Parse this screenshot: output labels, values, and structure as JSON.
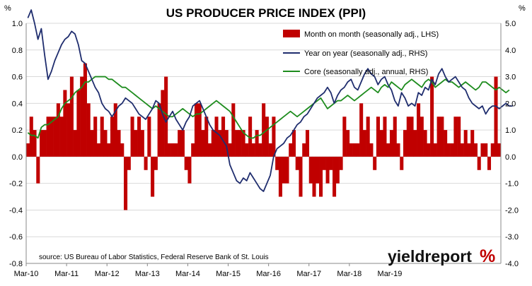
{
  "chart_data": {
    "type": "bar+line",
    "title": "US PRODUCER PRICE INDEX (PPI)",
    "left_unit": "%",
    "right_unit": "%",
    "source": "source: US Bureau of Labor Statistics, Federal Reserve Bank of St. Louis",
    "branding": {
      "word": "yieldreport",
      "symbol": "%"
    },
    "colors": {
      "bars": "#c00000",
      "yoy": "#1f2d6e",
      "core": "#1e8c1e",
      "grid": "#d9d9d9",
      "brand_accent": "#c00000"
    },
    "grid": true,
    "legend_position": "top-right",
    "left_axis": {
      "range": [
        -0.8,
        1.0
      ],
      "ticks": [
        "1.0",
        "0.8",
        "0.6",
        "0.4",
        "0.2",
        "0.0",
        "-0.2",
        "-0.4",
        "-0.6",
        "-0.8"
      ]
    },
    "right_axis": {
      "range": [
        -4.0,
        5.0
      ],
      "ticks": [
        "5.0",
        "4.0",
        "3.0",
        "2.0",
        "1.0",
        "0.0",
        "-1.0",
        "-2.0",
        "-3.0",
        "-4.0"
      ]
    },
    "x_ticks": [
      "Mar-10",
      "Mar-11",
      "Mar-12",
      "Mar-13",
      "Mar-14",
      "Mar-15",
      "Mar-16",
      "Mar-17",
      "Mar-18",
      "Mar-19"
    ],
    "x_tick_month_index": [
      0,
      12,
      24,
      36,
      48,
      60,
      72,
      84,
      96,
      108
    ],
    "series": [
      {
        "name": "Month on month (seasonally adj., LHS)",
        "kind": "bar",
        "axis": "left",
        "values": [
          0.1,
          0.3,
          0.2,
          -0.2,
          0.2,
          0.2,
          0.3,
          0.3,
          0.3,
          0.4,
          0.3,
          0.5,
          0.4,
          0.6,
          0.2,
          0.5,
          0.6,
          0.7,
          0.4,
          0.2,
          0.3,
          0.1,
          0.3,
          0.2,
          0.1,
          0.3,
          0.4,
          0.2,
          0.1,
          -0.4,
          -0.1,
          0.3,
          0.2,
          0.3,
          0.2,
          -0.1,
          0.3,
          -0.3,
          -0.1,
          0.4,
          0.5,
          0.6,
          0.1,
          0.1,
          0.1,
          0.2,
          0.2,
          -0.1,
          -0.2,
          0.1,
          0.4,
          0.4,
          0.2,
          0.3,
          0.1,
          0.2,
          0.3,
          0.2,
          0.3,
          0.2,
          0.1,
          0.4,
          0.2,
          0.2,
          0.2,
          0.1,
          0.3,
          0.1,
          0.2,
          0.1,
          0.4,
          0.3,
          0.1,
          0.3,
          -0.1,
          -0.3,
          -0.2,
          -0.2,
          0.1,
          0.2,
          -0.1,
          -0.3,
          0.1,
          0.2,
          -0.2,
          -0.3,
          -0.2,
          -0.3,
          -0.1,
          -0.2,
          -0.1,
          -0.3,
          -0.2,
          -0.1,
          0.3,
          0.2,
          0.1,
          0.1,
          0.1,
          0.4,
          0.2,
          0.3,
          0.1,
          -0.1,
          0.3,
          0.2,
          0.3,
          0.1,
          0.2,
          0.3,
          0.1,
          -0.1,
          0.2,
          0.3,
          0.3,
          0.2,
          0.4,
          0.3,
          0.2,
          0.1,
          0.6,
          0.1,
          0.3,
          0.3,
          0.2,
          0.1,
          0.1,
          0.3,
          0.3,
          0.1,
          0.2,
          0.1,
          0.2,
          0.1,
          -0.1,
          0.1,
          0.1,
          -0.1,
          0.1,
          0.6,
          0.1
        ]
      },
      {
        "name": "Year on year (seasonally adj., RHS)",
        "kind": "line",
        "axis": "right",
        "values": [
          5.2,
          5.5,
          5.0,
          4.4,
          4.8,
          3.8,
          2.9,
          3.2,
          3.6,
          3.9,
          4.2,
          4.4,
          4.5,
          4.7,
          4.6,
          4.2,
          3.6,
          3.5,
          3.2,
          2.9,
          2.6,
          2.4,
          2.0,
          1.8,
          1.7,
          1.5,
          1.7,
          1.9,
          2.0,
          2.2,
          2.1,
          2.0,
          1.8,
          1.6,
          1.5,
          1.4,
          1.6,
          1.8,
          2.1,
          2.0,
          1.6,
          1.3,
          1.5,
          1.7,
          1.4,
          1.2,
          1.0,
          1.3,
          1.5,
          1.9,
          2.0,
          2.1,
          1.8,
          1.5,
          1.2,
          1.0,
          0.9,
          0.8,
          0.6,
          0.4,
          -0.3,
          -0.6,
          -0.9,
          -1.0,
          -0.8,
          -0.9,
          -0.6,
          -0.8,
          -1.0,
          -1.2,
          -1.3,
          -1.0,
          -0.7,
          0.0,
          0.3,
          0.4,
          0.5,
          0.7,
          0.8,
          1.0,
          1.2,
          1.3,
          1.5,
          1.6,
          1.8,
          2.0,
          2.2,
          2.3,
          2.4,
          2.6,
          2.4,
          2.0,
          2.3,
          2.5,
          2.6,
          2.8,
          2.9,
          2.6,
          2.5,
          2.8,
          3.1,
          3.3,
          3.1,
          3.0,
          2.7,
          2.9,
          3.0,
          2.7,
          2.5,
          2.1,
          1.9,
          2.4,
          2.2,
          1.9,
          2.0,
          1.9,
          2.4,
          2.3,
          2.6,
          2.5,
          2.9,
          2.7,
          3.1,
          3.3,
          3.0,
          2.8,
          2.9,
          3.0,
          2.8,
          2.6,
          2.5,
          2.2,
          2.0,
          1.9,
          1.8,
          1.9,
          1.6,
          1.8,
          1.9,
          1.9,
          1.8,
          1.9,
          2.0,
          1.9,
          1.9
        ]
      },
      {
        "name": "Core (seasonally adj., annual, RHS)",
        "kind": "line",
        "axis": "right",
        "values": [
          0.9,
          0.8,
          0.8,
          0.7,
          1.1,
          1.2,
          1.2,
          1.3,
          1.4,
          1.5,
          1.8,
          2.0,
          2.1,
          2.2,
          2.4,
          2.5,
          2.6,
          2.8,
          2.8,
          2.9,
          3.0,
          3.0,
          3.0,
          3.0,
          2.9,
          2.9,
          2.8,
          2.7,
          2.6,
          2.6,
          2.5,
          2.4,
          2.3,
          2.2,
          2.1,
          2.0,
          1.9,
          1.8,
          1.9,
          1.8,
          1.7,
          1.6,
          1.5,
          1.5,
          1.6,
          1.7,
          1.8,
          1.7,
          1.6,
          1.5,
          1.6,
          1.6,
          1.7,
          1.8,
          1.9,
          2.0,
          2.1,
          2.0,
          1.9,
          1.8,
          1.7,
          1.5,
          1.3,
          1.1,
          0.9,
          0.8,
          0.7,
          0.7,
          0.8,
          0.8,
          0.9,
          1.0,
          1.1,
          1.2,
          1.3,
          1.4,
          1.5,
          1.6,
          1.7,
          1.6,
          1.5,
          1.6,
          1.7,
          1.8,
          1.9,
          2.0,
          2.1,
          2.2,
          2.0,
          1.8,
          1.9,
          2.0,
          2.1,
          2.1,
          2.2,
          2.3,
          2.2,
          2.1,
          2.2,
          2.3,
          2.4,
          2.5,
          2.6,
          2.5,
          2.4,
          2.6,
          2.7,
          2.6,
          2.8,
          2.7,
          2.6,
          2.5,
          2.7,
          2.8,
          2.9,
          2.8,
          2.7,
          2.6,
          2.8,
          2.9,
          2.8,
          2.6,
          2.7,
          2.8,
          2.9,
          2.8,
          2.8,
          2.7,
          2.6,
          2.7,
          2.8,
          2.7,
          2.6,
          2.5,
          2.6,
          2.8,
          2.8,
          2.7,
          2.6,
          2.5,
          2.6,
          2.5,
          2.4,
          2.5
        ]
      }
    ]
  }
}
